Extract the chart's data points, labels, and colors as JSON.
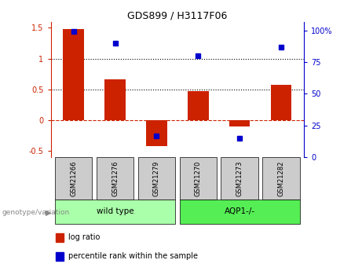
{
  "title": "GDS899 / H3117F06",
  "samples": [
    "GSM21266",
    "GSM21276",
    "GSM21279",
    "GSM21270",
    "GSM21273",
    "GSM21282"
  ],
  "log_ratio": [
    1.48,
    0.67,
    -0.42,
    0.47,
    -0.1,
    0.57
  ],
  "percentile_rank": [
    99,
    90,
    17,
    80,
    15,
    87
  ],
  "wild_type_label": "wild type",
  "aqp_label": "AQP1-/-",
  "genotype_label": "genotype/variation",
  "legend_log": "log ratio",
  "legend_pct": "percentile rank within the sample",
  "bar_color": "#cc2200",
  "dot_color": "#0000cc",
  "ylim_left": [
    -0.6,
    1.6
  ],
  "ylim_right": [
    0,
    107
  ],
  "yticks_left": [
    -0.5,
    0.0,
    0.5,
    1.0,
    1.5
  ],
  "ytick_labels_left": [
    "-0.5",
    "0",
    "0.5",
    "1",
    "1.5"
  ],
  "yticks_right": [
    0,
    25,
    50,
    75,
    100
  ],
  "ytick_labels_right": [
    "0",
    "25",
    "50",
    "75",
    "100%"
  ],
  "hlines": [
    0.5,
    1.0
  ],
  "hline_zero": 0.0,
  "bg_light_green": "#aaffaa",
  "bg_green": "#55ee55",
  "cell_bg": "#cccccc",
  "bar_width": 0.5,
  "title_fontsize": 9,
  "tick_fontsize": 7,
  "label_fontsize": 7,
  "sample_fontsize": 6,
  "geno_fontsize": 7.5
}
